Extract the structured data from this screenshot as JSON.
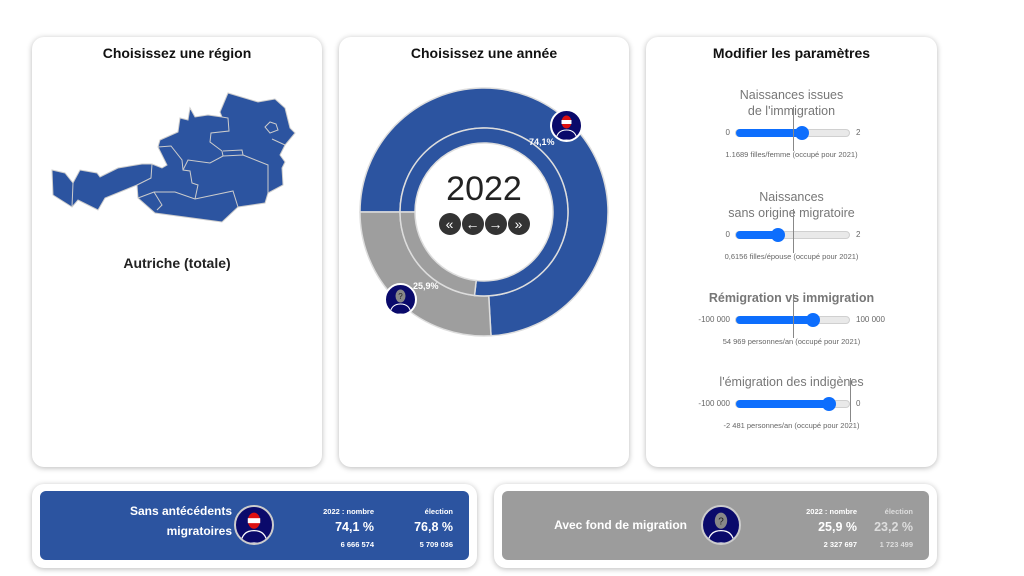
{
  "region_card": {
    "title": "Choisissez une région",
    "selected_region": "Autriche (totale)"
  },
  "year_card": {
    "title": "Choisissez une année",
    "year": "2022",
    "nav": {
      "first": "«",
      "prev": "←",
      "next": "→",
      "last": "»"
    },
    "donut": {
      "outer_pct_native": 74.1,
      "inner_pct_native_election": 76.8,
      "label_native": "74,1%",
      "label_migration": "25,9%"
    }
  },
  "params_card": {
    "title": "Modifier les paramètres",
    "sliders": [
      {
        "title1": "Naissances issues",
        "title2": "de l'immigration",
        "min": "0",
        "max": "2",
        "level": 0.58,
        "reference": 0.5,
        "note": "1.1689 filles/femme (occupé pour 2021)"
      },
      {
        "title1": "Naissances",
        "title2": "sans origine migratoire",
        "min": "0",
        "max": "2",
        "level": 0.37,
        "reference": 0.5,
        "note": "0,6156 filles/épouse (occupé pour 2021)"
      },
      {
        "title1": "Rémigration vs immigration",
        "title2": "",
        "min": "-100 000",
        "max": "100 000",
        "level": 0.68,
        "reference": 0.5,
        "note": "54 969 personnes/an (occupé pour 2021)"
      },
      {
        "title1": "l'émigration des indigènes",
        "title2": "",
        "min": "-100 000",
        "max": "0",
        "level": 0.82,
        "reference": 1.0,
        "note": "-2 481 personnes/an (occupé pour 2021)"
      }
    ]
  },
  "summary": [
    {
      "label1": "Sans antécédents",
      "label2": "migratoires",
      "h_year": "2022 : nombre",
      "h_election": "élection",
      "pct_year": "74,1 %",
      "pct_election": "76,8 %",
      "n_year": "6 666 574",
      "n_election": "5 709 036",
      "color": "#2c54a0"
    },
    {
      "label1": "Avec fond de migration",
      "label2": "",
      "h_year": "2022 : nombre",
      "h_election": "élection",
      "pct_year": "25,9 %",
      "pct_election": "23,2 %",
      "n_year": "2 327 697",
      "n_election": "1 723 499",
      "color": "#9c9c9c"
    }
  ],
  "colors": {
    "native": "#2c54a0",
    "migration": "#9e9e9e",
    "avatar": "#0a0a6b",
    "slider": "#0d6efd"
  }
}
